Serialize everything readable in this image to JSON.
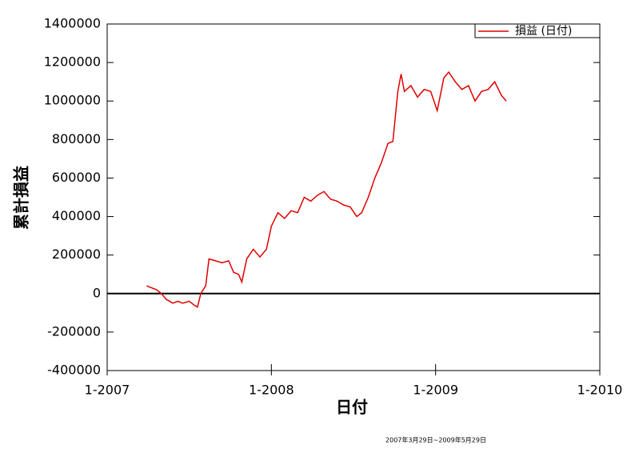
{
  "chart_data": {
    "type": "line",
    "y_label": "累計損益",
    "x_label": "日付",
    "footnote": "2007年3月29日~2009年5月29日",
    "x": [
      2007.24,
      2007.27,
      2007.3,
      2007.33,
      2007.36,
      2007.4,
      2007.43,
      2007.46,
      2007.5,
      2007.53,
      2007.55,
      2007.57,
      2007.6,
      2007.62,
      2007.66,
      2007.7,
      2007.74,
      2007.77,
      2007.8,
      2007.82,
      2007.85,
      2007.89,
      2007.93,
      2007.97,
      2008.0,
      2008.04,
      2008.08,
      2008.12,
      2008.16,
      2008.2,
      2008.24,
      2008.28,
      2008.32,
      2008.36,
      2008.4,
      2008.44,
      2008.48,
      2008.52,
      2008.55,
      2008.59,
      2008.63,
      2008.67,
      2008.71,
      2008.74,
      2008.77,
      2008.79,
      2008.81,
      2008.85,
      2008.89,
      2008.93,
      2008.97,
      2009.01,
      2009.05,
      2009.08,
      2009.12,
      2009.16,
      2009.2,
      2009.24,
      2009.28,
      2009.32,
      2009.36,
      2009.4,
      2009.43
    ],
    "series": [
      {
        "name": "損益 (日付)",
        "color": "#e00000",
        "values": [
          40000,
          30000,
          20000,
          0,
          -30000,
          -50000,
          -40000,
          -50000,
          -40000,
          -60000,
          -70000,
          0,
          40000,
          180000,
          170000,
          160000,
          170000,
          110000,
          100000,
          60000,
          180000,
          230000,
          190000,
          230000,
          350000,
          420000,
          390000,
          430000,
          420000,
          500000,
          480000,
          510000,
          530000,
          490000,
          480000,
          460000,
          450000,
          400000,
          420000,
          500000,
          600000,
          680000,
          780000,
          790000,
          1050000,
          1140000,
          1050000,
          1080000,
          1020000,
          1060000,
          1050000,
          950000,
          1120000,
          1150000,
          1100000,
          1060000,
          1080000,
          1000000,
          1050000,
          1060000,
          1100000,
          1030000,
          1000000
        ]
      }
    ],
    "xlim": [
      2007,
      2010
    ],
    "xticks": [
      {
        "value": 2007,
        "label": "1-2007"
      },
      {
        "value": 2008,
        "label": "1-2008"
      },
      {
        "value": 2009,
        "label": "1-2009"
      },
      {
        "value": 2010,
        "label": "1-2010"
      }
    ],
    "ylim": [
      -400000,
      1400000
    ],
    "yticks": [
      -400000,
      -200000,
      0,
      200000,
      400000,
      600000,
      800000,
      1000000,
      1200000,
      1400000
    ],
    "zero_line": true,
    "legend": "top-right"
  }
}
